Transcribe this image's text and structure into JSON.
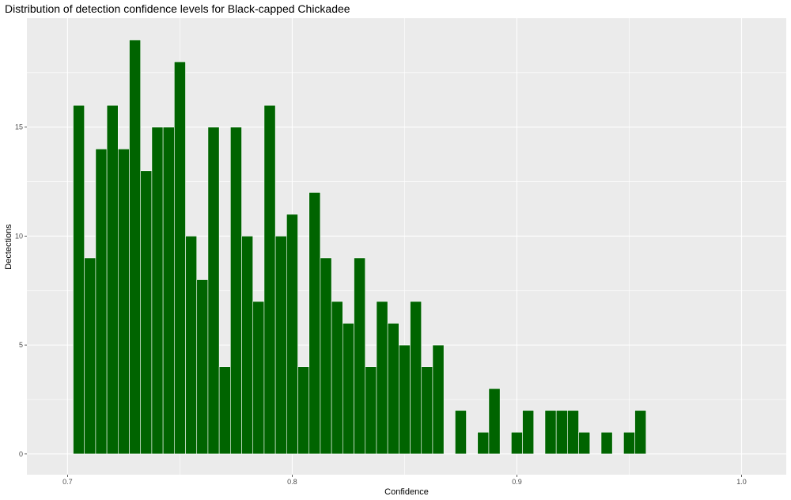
{
  "chart_data": {
    "type": "bar",
    "title": "Distribution of detection confidence levels for Black-capped Chickadee",
    "xlabel": "Confidence",
    "ylabel": "Dectections",
    "x_ticks": [
      "0.7",
      "0.8",
      "0.9",
      "1.0"
    ],
    "y_ticks": [
      "0",
      "5",
      "10",
      "15"
    ],
    "xlim": [
      0.6819,
      1.0199
    ],
    "ylim": [
      -0.95,
      20.0
    ],
    "bin_width": 0.005,
    "grid": true,
    "legend": "none",
    "bar_color": "#006400",
    "bar_outline_color": "#ffffff",
    "panel_background": "#ebebeb",
    "grid_color": "#ffffff",
    "bin_centers": [
      0.705,
      0.71,
      0.715,
      0.72,
      0.725,
      0.73,
      0.735,
      0.74,
      0.745,
      0.75,
      0.755,
      0.76,
      0.765,
      0.77,
      0.775,
      0.78,
      0.785,
      0.79,
      0.795,
      0.8,
      0.805,
      0.81,
      0.815,
      0.82,
      0.825,
      0.83,
      0.835,
      0.84,
      0.845,
      0.85,
      0.855,
      0.86,
      0.865,
      0.87,
      0.875,
      0.88,
      0.885,
      0.89,
      0.895,
      0.9,
      0.905,
      0.91,
      0.915,
      0.92,
      0.925,
      0.93,
      0.935,
      0.94,
      0.945,
      0.95,
      0.955
    ],
    "counts": [
      16,
      9,
      14,
      16,
      14,
      19,
      13,
      15,
      15,
      18,
      10,
      8,
      15,
      4,
      15,
      10,
      7,
      16,
      10,
      11,
      4,
      12,
      9,
      7,
      6,
      9,
      4,
      7,
      6,
      5,
      7,
      4,
      5,
      0,
      2,
      0,
      1,
      3,
      0,
      1,
      2,
      0,
      2,
      2,
      2,
      1,
      0,
      1,
      0,
      1,
      2
    ]
  }
}
